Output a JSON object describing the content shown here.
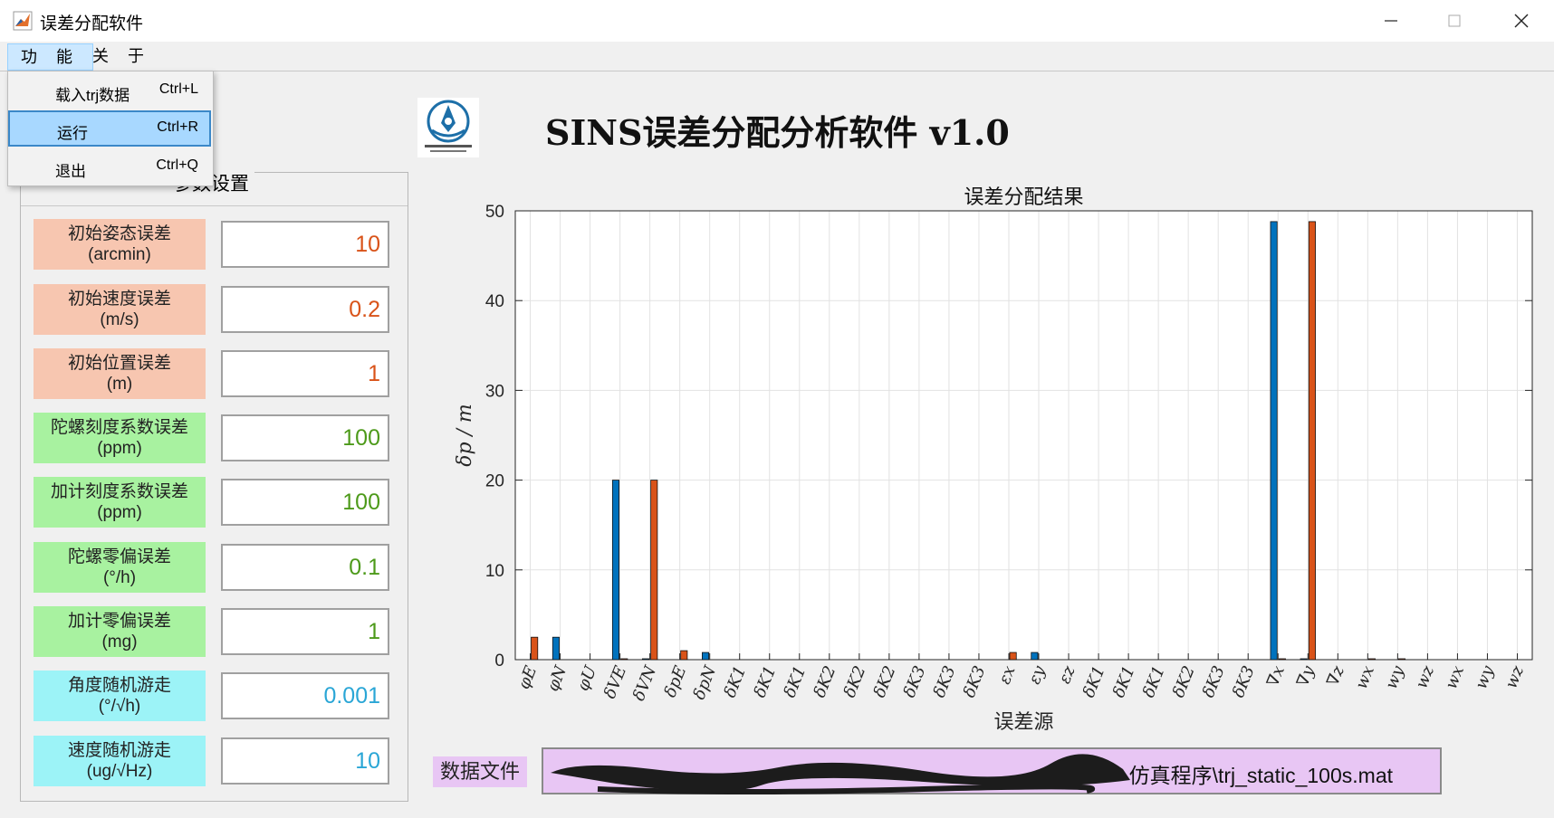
{
  "window": {
    "title": "误差分配软件"
  },
  "menubar": {
    "items": [
      "功 能",
      "关 于"
    ]
  },
  "dropdown": {
    "items": [
      {
        "label": "载入trj数据",
        "shortcut": "Ctrl+L"
      },
      {
        "label": "运行",
        "shortcut": "Ctrl+R"
      },
      {
        "label": "退出",
        "shortcut": "Ctrl+Q"
      }
    ]
  },
  "header": {
    "title": "SINS误差分配分析软件 v1.0"
  },
  "params": {
    "title": "参数设置",
    "items": [
      {
        "label": "初始姿态误差",
        "unit": "(arcmin)",
        "value": "10",
        "label_color": "#f7c6b0",
        "value_color": "#d95319"
      },
      {
        "label": "初始速度误差",
        "unit": "(m/s)",
        "value": "0.2",
        "label_color": "#f7c6b0",
        "value_color": "#d95319"
      },
      {
        "label": "初始位置误差",
        "unit": "(m)",
        "value": "1",
        "label_color": "#f7c6b0",
        "value_color": "#d95319"
      },
      {
        "label": "陀螺刻度系数误差",
        "unit": "(ppm)",
        "value": "100",
        "label_color": "#a8f2a0",
        "value_color": "#4d9a1a"
      },
      {
        "label": "加计刻度系数误差",
        "unit": "(ppm)",
        "value": "100",
        "label_color": "#a8f2a0",
        "value_color": "#4d9a1a"
      },
      {
        "label": "陀螺零偏误差",
        "unit": "(°/h)",
        "value": "0.1",
        "label_color": "#a8f2a0",
        "value_color": "#4d9a1a"
      },
      {
        "label": "加计零偏误差",
        "unit": "(mg)",
        "value": "1",
        "label_color": "#a8f2a0",
        "value_color": "#4d9a1a"
      },
      {
        "label": "角度随机游走",
        "unit": "(°/√h)",
        "value": "0.001",
        "label_color": "#9cf3f7",
        "value_color": "#2aa6d6"
      },
      {
        "label": "速度随机游走",
        "unit": "(ug/√Hz)",
        "value": "10",
        "label_color": "#9cf3f7",
        "value_color": "#2aa6d6"
      }
    ]
  },
  "chart_data": {
    "type": "bar",
    "title": "误差分配结果",
    "xlabel": "误差源",
    "ylabel": "δp / m",
    "ylim": [
      0,
      50
    ],
    "yticks": [
      0,
      10,
      20,
      30,
      40,
      50
    ],
    "grid": true,
    "categories": [
      "φE",
      "φN",
      "φU",
      "δVE",
      "δVN",
      "δpE",
      "δpN",
      "δK1",
      "δK1",
      "δK1",
      "δK2",
      "δK2",
      "δK2",
      "δK3",
      "δK3",
      "δK3",
      "εx",
      "εy",
      "εz",
      "δK1",
      "δK1",
      "δK1",
      "δK2",
      "δK3",
      "δK3",
      "∇x",
      "∇y",
      "∇z",
      "wx",
      "wy",
      "wz",
      "wx",
      "wy",
      "wz"
    ],
    "series": [
      {
        "color": "#0072bd",
        "values": [
          0,
          2.5,
          0,
          20,
          0.1,
          0,
          0.8,
          0,
          0,
          0,
          0,
          0,
          0,
          0,
          0,
          0,
          0,
          0.8,
          0,
          0,
          0,
          0,
          0,
          0,
          0,
          48.8,
          0.1,
          0,
          0,
          0,
          0,
          0,
          0,
          0
        ]
      },
      {
        "color": "#d95319",
        "values": [
          2.5,
          0,
          0,
          0.1,
          20,
          1,
          0,
          0,
          0,
          0,
          0,
          0,
          0,
          0,
          0,
          0,
          0.8,
          0,
          0,
          0,
          0,
          0,
          0,
          0,
          0,
          0.1,
          48.8,
          0,
          0.1,
          0.1,
          0,
          0,
          0,
          0
        ]
      }
    ]
  },
  "file": {
    "label": "数据文件",
    "path": "仿真程序\\trj_static_100s.mat"
  }
}
